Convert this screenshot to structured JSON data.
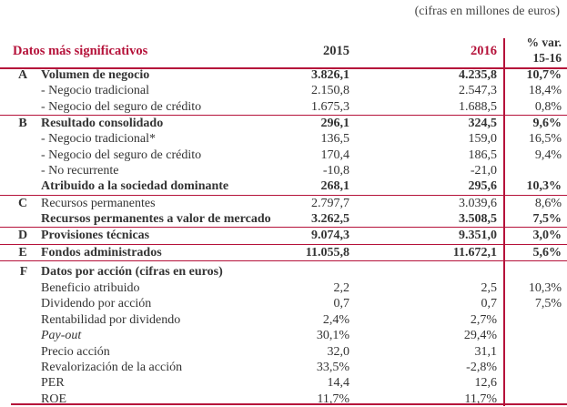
{
  "unit_note": "(cifras en millones de euros)",
  "header": {
    "title": "Datos más significativos",
    "col_2015": "2015",
    "col_2016": "2016",
    "col_var_line1": "% var.",
    "col_var_line2": "15-16"
  },
  "accent_color": "#b5123a",
  "rows": [
    {
      "letter": "A",
      "label": "Volumen de negocio",
      "v2015": "3.826,1",
      "v2016": "4.235,8",
      "var": "10,7%",
      "bold": true,
      "rule": false
    },
    {
      "letter": "",
      "label": "- Negocio tradicional",
      "v2015": "2.150,8",
      "v2016": "2.547,3",
      "var": "18,4%"
    },
    {
      "letter": "",
      "label": "- Negocio del seguro de crédito",
      "v2015": "1.675,3",
      "v2016": "1.688,5",
      "var": "0,8%"
    },
    {
      "letter": "B",
      "label": "Resultado consolidado",
      "v2015": "296,1",
      "v2016": "324,5",
      "var": "9,6%",
      "bold": true,
      "rule": true
    },
    {
      "letter": "",
      "label": "- Negocio tradicional*",
      "v2015": "136,5",
      "v2016": "159,0",
      "var": "16,5%"
    },
    {
      "letter": "",
      "label": "- Negocio del seguro de crédito",
      "v2015": "170,4",
      "v2016": "186,5",
      "var": "9,4%"
    },
    {
      "letter": "",
      "label": "- No recurrente",
      "v2015": "-10,8",
      "v2016": "-21,0",
      "var": ""
    },
    {
      "letter": "",
      "label": "Atribuido a la sociedad dominante",
      "v2015": "268,1",
      "v2016": "295,6",
      "var": "10,3%",
      "bold": true
    },
    {
      "letter": "C",
      "label": "Recursos permanentes",
      "v2015": "2.797,7",
      "v2016": "3.039,6",
      "var": "8,6%",
      "rule": true
    },
    {
      "letter": "",
      "label": "Recursos permanentes a valor de mercado",
      "v2015": "3.262,5",
      "v2016": "3.508,5",
      "var": "7,5%",
      "bold": true
    },
    {
      "letter": "D",
      "label": "Provisiones técnicas",
      "v2015": "9.074,3",
      "v2016": "9.351,0",
      "var": "3,0%",
      "bold": true,
      "rule": true
    },
    {
      "letter": "E",
      "label": "Fondos administrados",
      "v2015": "11.055,8",
      "v2016": "11.672,1",
      "var": "5,6%",
      "bold": true,
      "rule": true
    },
    {
      "letter": "F",
      "label": "Datos por acción (cifras en euros)",
      "v2015": "",
      "v2016": "",
      "var": "",
      "bold": true,
      "rule": true,
      "tall": true
    },
    {
      "letter": "",
      "label": "Beneficio atribuido",
      "v2015": "2,2",
      "v2016": "2,5",
      "var": "10,3%"
    },
    {
      "letter": "",
      "label": "Dividendo por acción",
      "v2015": "0,7",
      "v2016": "0,7",
      "var": "7,5%"
    },
    {
      "letter": "",
      "label": "Rentabilidad por dividendo",
      "v2015": "2,4%",
      "v2016": "2,7%",
      "var": ""
    },
    {
      "letter": "",
      "label": "Pay-out",
      "v2015": "30,1%",
      "v2016": "29,4%",
      "var": "",
      "italic": true
    },
    {
      "letter": "",
      "label": "Precio acción",
      "v2015": "32,0",
      "v2016": "31,1",
      "var": ""
    },
    {
      "letter": "",
      "label": "Revalorización de la acción",
      "v2015": "33,5%",
      "v2016": "-2,8%",
      "var": ""
    },
    {
      "letter": "",
      "label": "PER",
      "v2015": "14,4",
      "v2016": "12,6",
      "var": ""
    },
    {
      "letter": "",
      "label": "ROE",
      "v2015": "11,7%",
      "v2016": "11,7%",
      "var": ""
    }
  ]
}
